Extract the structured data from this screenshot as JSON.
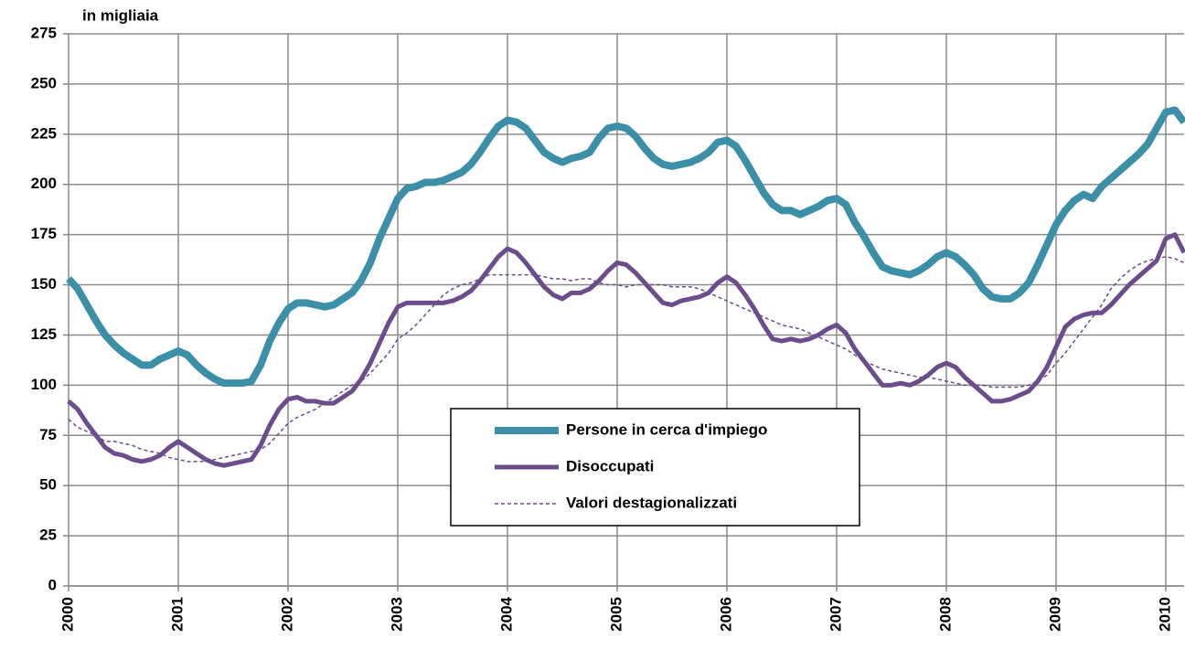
{
  "chart_data": {
    "type": "line",
    "subtitle": "in migliaia",
    "categories": [
      "2000",
      null,
      null,
      null,
      null,
      null,
      null,
      null,
      null,
      null,
      null,
      null,
      "2001",
      null,
      null,
      null,
      null,
      null,
      null,
      null,
      null,
      null,
      null,
      null,
      "2002",
      null,
      null,
      null,
      null,
      null,
      null,
      null,
      null,
      null,
      null,
      null,
      "2003",
      null,
      null,
      null,
      null,
      null,
      null,
      null,
      null,
      null,
      null,
      null,
      "2004",
      null,
      null,
      null,
      null,
      null,
      null,
      null,
      null,
      null,
      null,
      null,
      "2005",
      null,
      null,
      null,
      null,
      null,
      null,
      null,
      null,
      null,
      null,
      null,
      "2006",
      null,
      null,
      null,
      null,
      null,
      null,
      null,
      null,
      null,
      null,
      null,
      "2007",
      null,
      null,
      null,
      null,
      null,
      null,
      null,
      null,
      null,
      null,
      null,
      "2008",
      null,
      null,
      null,
      null,
      null,
      null,
      null,
      null,
      null,
      null,
      null,
      "2009",
      null,
      null,
      null,
      null,
      null,
      null,
      null,
      null,
      null,
      null,
      null,
      "2010",
      null,
      null
    ],
    "series": [
      {
        "name": "Persone in cerca d'impiego",
        "color": "#3b8fa6",
        "linestyle": "solid",
        "values": [
          153,
          148,
          140,
          132,
          125,
          120,
          116,
          113,
          110,
          110,
          113,
          115,
          117,
          115,
          110,
          106,
          103,
          101,
          101,
          101,
          102,
          110,
          122,
          131,
          138,
          141,
          141,
          140,
          139,
          140,
          143,
          146,
          152,
          161,
          173,
          183,
          193,
          198,
          199,
          201,
          201,
          202,
          204,
          206,
          210,
          216,
          223,
          229,
          232,
          231,
          228,
          222,
          216,
          213,
          211,
          213,
          214,
          216,
          223,
          228,
          229,
          228,
          224,
          218,
          213,
          210,
          209,
          210,
          211,
          213,
          216,
          221,
          222,
          219,
          212,
          204,
          196,
          190,
          187,
          187,
          185,
          187,
          189,
          192,
          193,
          190,
          181,
          174,
          166,
          159,
          157,
          156,
          155,
          157,
          160,
          164,
          166,
          164,
          160,
          155,
          148,
          144,
          143,
          143,
          146,
          151,
          160,
          170,
          180,
          187,
          192,
          195,
          193,
          199,
          203,
          207,
          211,
          215,
          220,
          228,
          236,
          237,
          231
        ]
      },
      {
        "name": "Disoccupati",
        "color": "#6b4d8c",
        "linestyle": "solid",
        "values": [
          92,
          88,
          81,
          75,
          69,
          66,
          65,
          63,
          62,
          63,
          65,
          69,
          72,
          69,
          66,
          63,
          61,
          60,
          61,
          62,
          63,
          70,
          80,
          88,
          93,
          94,
          92,
          92,
          91,
          91,
          94,
          97,
          103,
          111,
          121,
          131,
          139,
          141,
          141,
          141,
          141,
          141,
          142,
          144,
          147,
          152,
          158,
          164,
          168,
          166,
          161,
          155,
          149,
          145,
          143,
          146,
          146,
          148,
          152,
          157,
          161,
          160,
          156,
          151,
          146,
          141,
          140,
          142,
          143,
          144,
          146,
          151,
          154,
          151,
          145,
          138,
          130,
          123,
          122,
          123,
          122,
          123,
          125,
          128,
          130,
          126,
          118,
          112,
          106,
          100,
          100,
          101,
          100,
          102,
          105,
          109,
          111,
          109,
          104,
          100,
          96,
          92,
          92,
          93,
          95,
          97,
          102,
          109,
          119,
          129,
          133,
          135,
          136,
          136,
          140,
          145,
          150,
          154,
          158,
          162,
          173,
          175,
          166
        ]
      },
      {
        "name": "Valori destagionalizzati",
        "color": "#6b4d8c",
        "linestyle": "dashed",
        "values": [
          83,
          79,
          77,
          75,
          72,
          72,
          71,
          70,
          68,
          67,
          66,
          64,
          63,
          62,
          62,
          62,
          63,
          64,
          65,
          66,
          67,
          68,
          71,
          76,
          81,
          84,
          86,
          88,
          91,
          94,
          97,
          100,
          102,
          106,
          111,
          116,
          123,
          126,
          130,
          135,
          140,
          145,
          148,
          150,
          151,
          153,
          155,
          155,
          155,
          155,
          155,
          155,
          154,
          153,
          153,
          152,
          153,
          153,
          151,
          150,
          150,
          149,
          150,
          150,
          150,
          150,
          149,
          149,
          149,
          148,
          146,
          144,
          142,
          140,
          138,
          136,
          134,
          132,
          130,
          129,
          128,
          126,
          124,
          122,
          120,
          118,
          115,
          112,
          110,
          108,
          107,
          106,
          105,
          104,
          104,
          103,
          102,
          101,
          100,
          100,
          100,
          99,
          99,
          99,
          99,
          100,
          102,
          105,
          111,
          116,
          122,
          128,
          134,
          140,
          148,
          153,
          157,
          160,
          162,
          163,
          164,
          163,
          161
        ]
      }
    ],
    "ylim": [
      0,
      275
    ],
    "yticks": [
      0,
      25,
      50,
      75,
      100,
      125,
      150,
      175,
      200,
      225,
      250,
      275
    ],
    "grid": true,
    "legend_position": "center"
  }
}
